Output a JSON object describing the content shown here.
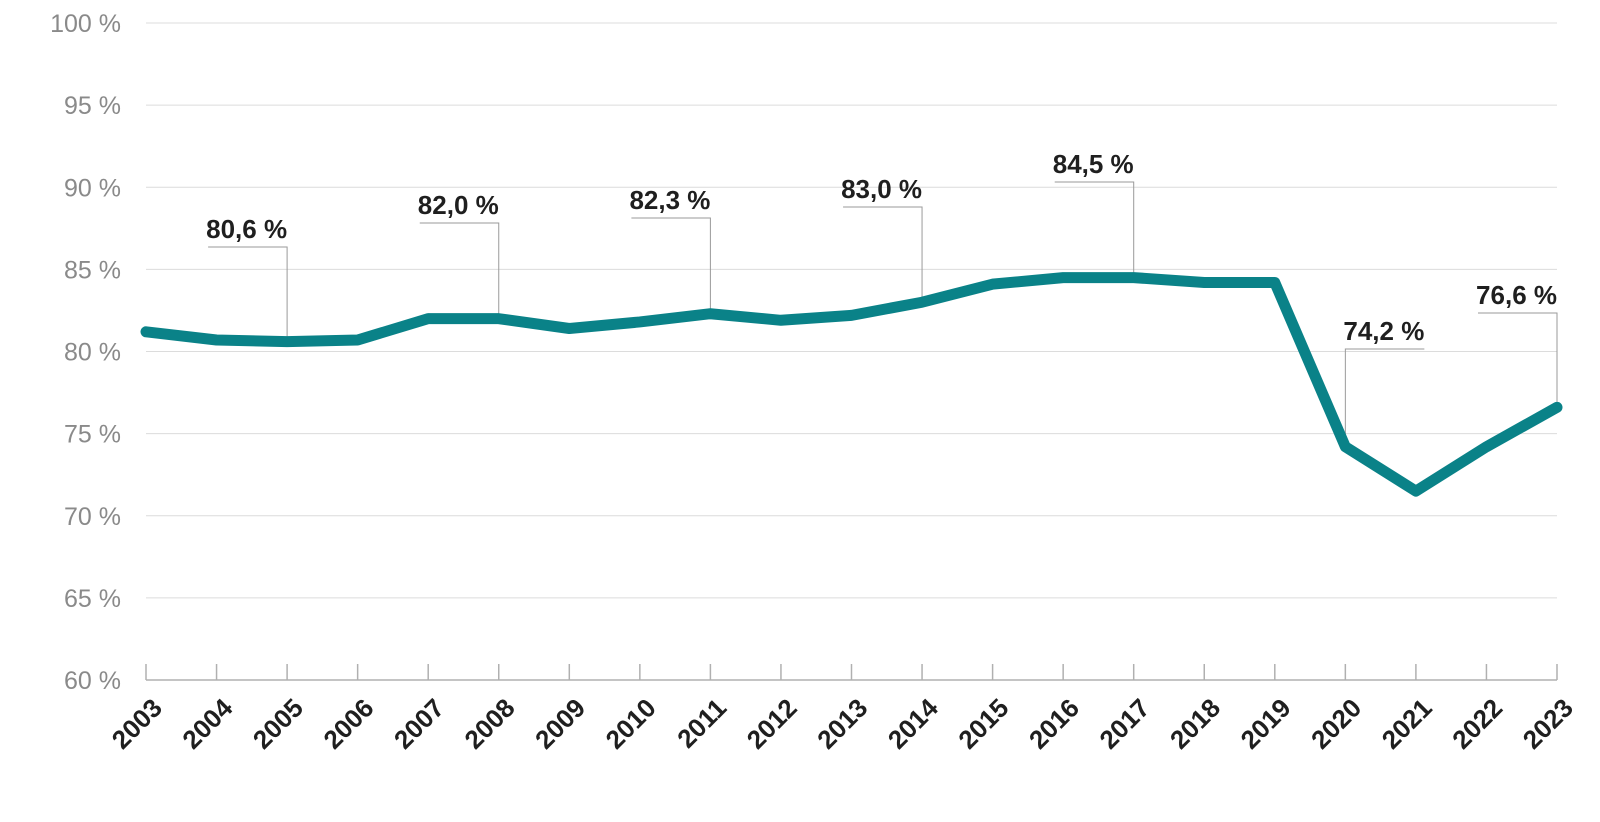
{
  "chart_data": {
    "type": "line",
    "x": [
      "2003",
      "2004",
      "2005",
      "2006",
      "2007",
      "2008",
      "2009",
      "2010",
      "2011",
      "2012",
      "2013",
      "2014",
      "2015",
      "2016",
      "2017",
      "2018",
      "2019",
      "2020",
      "2021",
      "2022",
      "2023"
    ],
    "values": [
      81.2,
      80.7,
      80.6,
      80.7,
      82.0,
      82.0,
      81.4,
      81.8,
      82.3,
      81.9,
      82.2,
      83.0,
      84.1,
      84.5,
      84.5,
      84.2,
      84.2,
      74.2,
      71.5,
      74.2,
      76.6
    ],
    "ylim": [
      60,
      100
    ],
    "yticks": [
      {
        "value": 60,
        "label": "60 %"
      },
      {
        "value": 65,
        "label": "65 %"
      },
      {
        "value": 70,
        "label": "70 %"
      },
      {
        "value": 75,
        "label": "75 %"
      },
      {
        "value": 80,
        "label": "80 %"
      },
      {
        "value": 85,
        "label": "85 %"
      },
      {
        "value": 90,
        "label": "90 %"
      },
      {
        "value": 95,
        "label": "95 %"
      },
      {
        "value": 100,
        "label": "100 %"
      }
    ],
    "annotations": [
      {
        "x": "2005",
        "value": 80.6,
        "label": "80,6 %"
      },
      {
        "x": "2008",
        "value": 82.0,
        "label": "82,0 %"
      },
      {
        "x": "2011",
        "value": 82.3,
        "label": "82,3 %"
      },
      {
        "x": "2014",
        "value": 83.0,
        "label": "83,0 %"
      },
      {
        "x": "2017",
        "value": 84.5,
        "label": "84,5 %"
      },
      {
        "x": "2020",
        "value": 74.2,
        "label": "74,2 %"
      },
      {
        "x": "2023",
        "value": 76.6,
        "label": "76,6 %"
      }
    ],
    "line_color": "#0a8288",
    "grid": true,
    "title": "",
    "xlabel": "",
    "ylabel": ""
  }
}
